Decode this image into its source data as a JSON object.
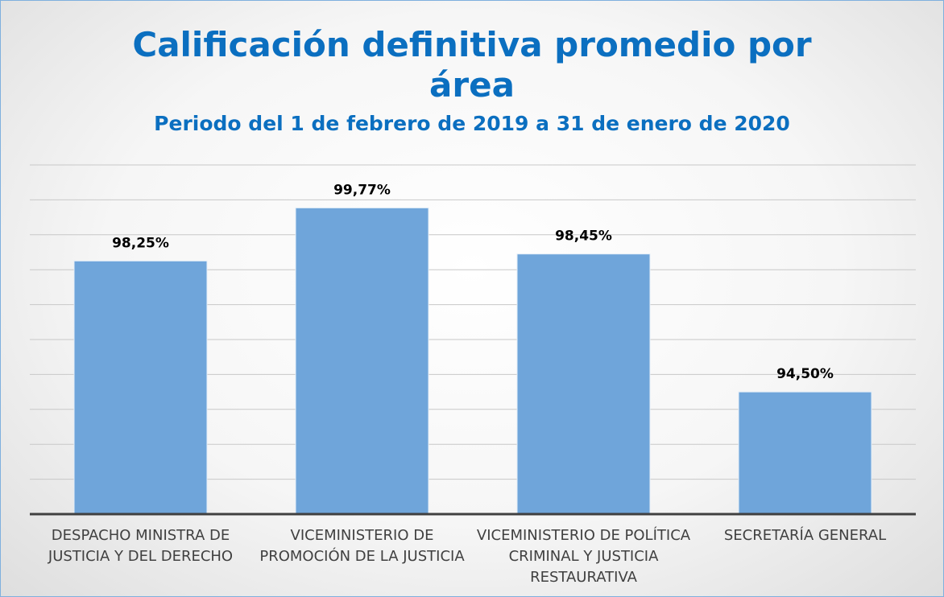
{
  "chart_data": {
    "type": "bar",
    "title": "Calificación definitiva promedio por área",
    "subtitle": "Periodo del 1 de febrero de 2019 a 31 de enero de 2020",
    "categories": [
      "DESPACHO MINISTRA DE JUSTICIA Y DEL DERECHO",
      "VICEMINISTERIO DE PROMOCIÓN DE LA JUSTICIA",
      "VICEMINISTERIO DE POLÍTICA CRIMINAL Y JUSTICIA RESTAURATIVA",
      "SECRETARÍA GENERAL"
    ],
    "values": [
      98.25,
      99.77,
      98.45,
      94.5
    ],
    "value_labels": [
      "98,25%",
      "99,77%",
      "98,45%",
      "94,50%"
    ],
    "color": "#6fa5da",
    "ylim": [
      91,
      101
    ],
    "yticks": [
      91,
      92,
      93,
      94,
      95,
      96,
      97,
      98,
      99,
      100,
      101
    ],
    "grid": true
  }
}
